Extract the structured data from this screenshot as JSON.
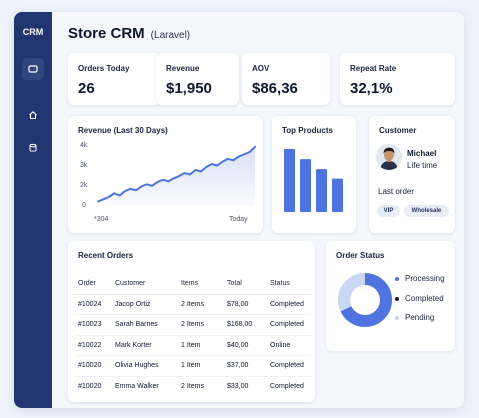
{
  "app": {
    "brand": "CRM",
    "title": "Store CRM",
    "subtitle": "(Laravel)"
  },
  "sidebar": {
    "items": [
      {
        "icon": "grid-icon",
        "active": true
      },
      {
        "icon": "home-icon",
        "active": false
      },
      {
        "icon": "database-icon",
        "active": false
      }
    ]
  },
  "kpis": [
    {
      "label": "Orders Today",
      "value": "26"
    },
    {
      "label": "Revenue",
      "value": "$1,950"
    },
    {
      "label": "AOV",
      "value": "$86,36"
    },
    {
      "label": "Repeat Rate",
      "value": "32,1%"
    }
  ],
  "revenue_chart": {
    "title": "Revenue (Last 30 Days)",
    "y_ticks": [
      "4k",
      "3k",
      "2k",
      "0"
    ],
    "x_start_label": "*304",
    "x_end_label": "Today"
  },
  "top_products": {
    "title": "Top Products"
  },
  "customer": {
    "title": "Customer",
    "name": "Michael",
    "role": "Life time",
    "last_order_label": "Last order",
    "tags": [
      "VIP",
      "Wholesale"
    ]
  },
  "recent_orders": {
    "title": "Recent Orders",
    "columns": [
      "Order",
      "Customer",
      "Items",
      "Total",
      "Status"
    ],
    "rows": [
      [
        "#10024",
        "Jacop Ortiz",
        "2 Items",
        "$78,00",
        "Completed"
      ],
      [
        "#10023",
        "Sarah Barnes",
        "2 Items",
        "$168,00",
        "Completed"
      ],
      [
        "#10022",
        "Mark Korter",
        "1 Item",
        "$40,00",
        "Online"
      ],
      [
        "#10020",
        "Olivia Hughes",
        "1 Item",
        "$37,00",
        "Completed"
      ],
      [
        "#10020",
        "Emma Walker",
        "2 Items",
        "$33,00",
        "Completed"
      ]
    ]
  },
  "order_status": {
    "title": "Order Status",
    "legend": [
      {
        "label": "Processing",
        "color": "#4f74e0"
      },
      {
        "label": "Completed",
        "color": "#14203a"
      },
      {
        "label": "Pending",
        "color": "#c9d7f3"
      }
    ]
  },
  "colors": {
    "accent": "#4f74e0",
    "sidebar": "#23356e",
    "light_accent": "#d8e3f8"
  },
  "chart_data": [
    {
      "type": "area",
      "title": "Revenue (Last 30 Days)",
      "y_ticks": [
        "4k",
        "3k",
        "2k",
        "0"
      ],
      "ylim": [
        0,
        4000
      ],
      "grid": false,
      "values": [
        300,
        450,
        600,
        850,
        700,
        1000,
        1150,
        1050,
        1300,
        1450,
        1350,
        1600,
        1750,
        1650,
        1850,
        2000,
        2200,
        2100,
        2400,
        2300,
        2600,
        2800,
        2700,
        2950,
        3150,
        3050,
        3300,
        3450,
        3600,
        3950
      ]
    },
    {
      "type": "bar",
      "title": "Top Products",
      "values": [
        100,
        84,
        68,
        53
      ],
      "grid": false
    },
    {
      "type": "pie",
      "title": "Order Status",
      "categories": [
        "Processing",
        "Completed",
        "Pending"
      ],
      "values": [
        68,
        0,
        32
      ]
    }
  ]
}
